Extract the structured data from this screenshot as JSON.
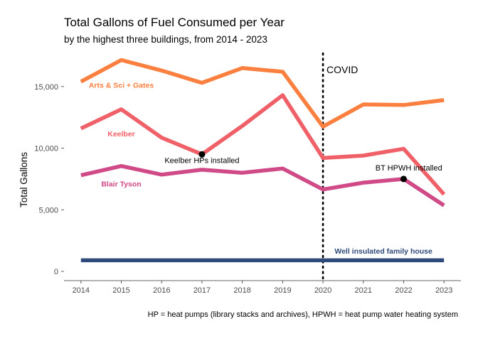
{
  "chart_data": {
    "type": "line",
    "title": "Total Gallons of Fuel Consumed per Year",
    "subtitle": "by the highest three buildings, from 2014 - 2023",
    "xlabel": "",
    "ylabel": "Total Gallons",
    "caption": "HP = heat pumps (library stacks and archives), HPWH = heat pump water heating system",
    "x": [
      2014,
      2015,
      2016,
      2017,
      2018,
      2019,
      2020,
      2021,
      2022,
      2023
    ],
    "x_tick_labels": [
      "2014",
      "2015",
      "2016",
      "2017",
      "2018",
      "2019",
      "2020",
      "2021",
      "2022",
      "2023"
    ],
    "y_ticks": [
      0,
      5000,
      10000,
      15000
    ],
    "y_tick_labels": [
      "0",
      "5,000",
      "10,000",
      "15,000"
    ],
    "ylim": [
      -750,
      17700
    ],
    "grid": false,
    "legend": "none",
    "series": [
      {
        "name": "Arts & Sci + Gates",
        "color": "#fb7f3f",
        "values": [
          15400,
          17150,
          16300,
          15300,
          16500,
          16200,
          11750,
          13550,
          13500,
          13900
        ],
        "label_x": 2015,
        "label_y": 14900
      },
      {
        "name": "Keelber",
        "color": "#f06068",
        "values": [
          11600,
          13150,
          10850,
          9500,
          11800,
          14300,
          9200,
          9400,
          9950,
          6250
        ],
        "label_x": 2015,
        "label_y": 10950
      },
      {
        "name": "Blair Tyson",
        "color": "#cf4a86",
        "values": [
          7800,
          8550,
          7850,
          8250,
          8000,
          8350,
          6650,
          7200,
          7500,
          5350
        ],
        "label_x": 2015,
        "label_y": 6900
      },
      {
        "name": "Well insulated family house",
        "color": "#2e4a7a",
        "values": [
          900,
          900,
          900,
          900,
          900,
          900,
          900,
          900,
          900,
          900
        ],
        "label_x": 2021.5,
        "label_y": 1450
      }
    ],
    "reference_lines": [
      {
        "x": 2020,
        "style": "dotted",
        "label": "COVID",
        "label_y": 16100
      }
    ],
    "annotations": [
      {
        "text": "Keelber HPs installed",
        "x": 2017,
        "y": 9500,
        "label_y": 8800
      },
      {
        "text": "BT HPWH installed",
        "x": 2022,
        "y": 7500,
        "label_x": 2021.3,
        "label_y": 8200
      }
    ]
  }
}
